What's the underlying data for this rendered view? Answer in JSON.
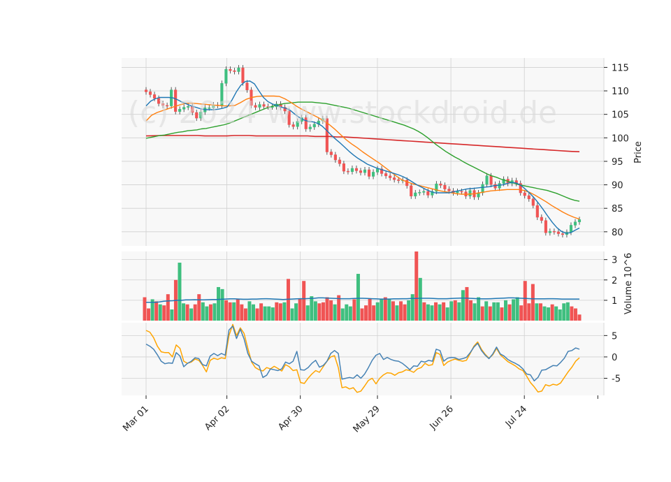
{
  "chart_data": {
    "type": "candlestick",
    "watermark": "(c) 2024 www.stockdroid.de",
    "x_tick_labels": [
      "Mar 01",
      "Apr 02",
      "Apr 30",
      "May 29",
      "Jun 26",
      "Jul 24"
    ],
    "x_tick_days": [
      0,
      22,
      42,
      63,
      83,
      103
    ],
    "n_days": 119,
    "grid": true,
    "price": {
      "ylabel": "Price",
      "ylim": [
        77,
        117
      ],
      "yticks": [
        80,
        85,
        90,
        95,
        100,
        105,
        110,
        115
      ],
      "close": [
        109.8,
        109.2,
        108.4,
        107.3,
        106.9,
        106.8,
        110.2,
        105.6,
        106.1,
        106.5,
        106.7,
        105.4,
        104.2,
        105.5,
        106.4,
        106.4,
        107.0,
        106.9,
        111.6,
        114.6,
        114.3,
        114.1,
        114.9,
        111.7,
        110.2,
        106.9,
        106.5,
        107.1,
        106.7,
        106.6,
        106.6,
        107.2,
        106.5,
        105.7,
        102.8,
        102.4,
        103.5,
        104.3,
        101.9,
        102.3,
        102.9,
        103.6,
        104.1,
        97.0,
        96.4,
        95.3,
        94.5,
        92.9,
        92.8,
        93.5,
        93.0,
        92.6,
        93.2,
        91.8,
        92.7,
        93.4,
        92.4,
        91.9,
        91.5,
        91.1,
        90.9,
        91.0,
        89.8,
        87.6,
        88.3,
        88.4,
        88.6,
        87.8,
        88.6,
        90.2,
        89.9,
        89.1,
        88.7,
        88.3,
        88.6,
        88.5,
        87.6,
        88.8,
        87.4,
        88.3,
        90.1,
        91.9,
        90.1,
        89.3,
        90.3,
        91.2,
        90.3,
        90.9,
        90.3,
        88.3,
        87.7,
        87.0,
        85.6,
        83.1,
        82.4,
        79.8,
        80.1,
        80.0,
        79.6,
        79.4,
        79.9,
        81.4,
        82.1,
        82.6
      ],
      "ma_short": [
        106.8,
        107.8,
        108.3,
        108.6,
        108.6,
        108.6,
        108.5,
        108.1,
        107.6,
        107.2,
        106.8,
        106.5,
        106.2,
        106.0,
        106.0,
        106.0,
        106.1,
        106.3,
        106.6,
        108.0,
        109.8,
        111.2,
        112.0,
        112.1,
        111.5,
        110.0,
        108.6,
        107.7,
        107.2,
        106.9,
        106.5,
        106.3,
        105.8,
        105.0,
        104.3,
        103.8,
        103.5,
        103.4,
        103.1,
        102.5,
        101.6,
        100.6,
        99.7,
        98.9,
        98.0,
        97.1,
        96.3,
        95.6,
        95.0,
        94.4,
        94.0,
        93.6,
        93.3,
        93.0,
        92.7,
        92.4,
        92.1,
        91.7,
        91.2,
        90.6,
        90.0,
        89.5,
        89.0,
        88.6,
        88.3,
        88.3,
        88.3,
        88.3,
        88.5,
        88.7,
        88.9,
        89.1,
        89.2,
        89.3,
        89.4,
        89.5,
        89.6,
        89.8,
        89.9,
        90.0,
        90.3,
        90.5,
        90.4,
        89.9,
        89.1,
        88.2,
        87.2,
        86.0,
        84.7,
        83.3,
        82.0,
        80.9,
        80.1,
        79.7,
        79.8,
        80.3,
        80.8
      ],
      "ma_mid": [
        103.6,
        104.8,
        105.4,
        105.8,
        106.2,
        106.6,
        107.0,
        107.3,
        107.4,
        107.3,
        107.2,
        107.1,
        107.0,
        106.9,
        106.8,
        106.8,
        106.9,
        107.5,
        108.2,
        108.6,
        108.8,
        108.9,
        108.9,
        108.9,
        108.8,
        108.3,
        107.6,
        106.8,
        106.1,
        105.5,
        104.9,
        104.3,
        103.6,
        102.8,
        101.8,
        100.7,
        99.6,
        98.7,
        97.9,
        97.0,
        96.2,
        95.4,
        94.6,
        93.7,
        92.8,
        91.9,
        91.1,
        90.6,
        90.2,
        89.9,
        89.6,
        89.3,
        89.0,
        88.7,
        88.5,
        88.3,
        88.1,
        88.0,
        88.0,
        88.1,
        88.3,
        88.5,
        88.7,
        88.8,
        88.9,
        89.0,
        89.0,
        89.0,
        88.8,
        88.4,
        87.8,
        87.1,
        86.4,
        85.6,
        84.9,
        84.2,
        83.6,
        83.1,
        82.7
      ],
      "ma_long": [
        99.9,
        100.1,
        100.3,
        100.5,
        100.6,
        100.8,
        101.0,
        101.2,
        101.3,
        101.5,
        101.6,
        101.7,
        101.9,
        102.0,
        102.2,
        102.4,
        102.6,
        102.8,
        103.1,
        103.5,
        103.9,
        104.3,
        104.7,
        105.1,
        105.5,
        105.9,
        106.3,
        106.6,
        106.9,
        107.1,
        107.3,
        107.4,
        107.5,
        107.6,
        107.6,
        107.6,
        107.6,
        107.5,
        107.4,
        107.3,
        107.1,
        106.9,
        106.7,
        106.5,
        106.3,
        106.0,
        105.7,
        105.4,
        105.1,
        104.8,
        104.5,
        104.2,
        103.9,
        103.6,
        103.3,
        103.0,
        102.7,
        102.3,
        101.9,
        101.4,
        100.8,
        100.1,
        99.3,
        98.5,
        97.8,
        97.1,
        96.5,
        95.9,
        95.4,
        94.8,
        94.3,
        93.8,
        93.3,
        92.8,
        92.3,
        91.9,
        91.6,
        91.2,
        90.9,
        90.6,
        90.3,
        90.0,
        89.8,
        89.6,
        89.4,
        89.2,
        89.0,
        88.8,
        88.5,
        88.2,
        87.8,
        87.4,
        87.0,
        86.7,
        86.5
      ],
      "ma_200": [
        100.4,
        100.45,
        100.5,
        100.5,
        100.5,
        100.5,
        100.5,
        100.5,
        100.4,
        100.4,
        100.4,
        100.4,
        100.5,
        100.5,
        100.5,
        100.4,
        100.4,
        100.4,
        100.4,
        100.4,
        100.4,
        100.4,
        100.4,
        100.3,
        100.3,
        100.3,
        100.2,
        100.2,
        100.1,
        100.0,
        99.9,
        99.8,
        99.7,
        99.6,
        99.5,
        99.4,
        99.3,
        99.2,
        99.1,
        99.0,
        98.9,
        98.8,
        98.7,
        98.6,
        98.5,
        98.4,
        98.3,
        98.2,
        98.1,
        98.0,
        97.9,
        97.8,
        97.7,
        97.6,
        97.5,
        97.4,
        97.3,
        97.2,
        97.1,
        97.05
      ]
    },
    "volume": {
      "ylabel": "Volume  10^6",
      "ylim": [
        0,
        3.4
      ],
      "yticks": [
        1,
        2,
        3
      ],
      "values": [
        1.15,
        0.6,
        1.05,
        0.95,
        0.8,
        0.75,
        1.3,
        0.55,
        2.0,
        2.85,
        0.85,
        0.8,
        0.6,
        0.8,
        1.3,
        0.9,
        0.7,
        0.8,
        0.85,
        1.65,
        1.55,
        1.0,
        0.9,
        0.9,
        1.05,
        0.8,
        0.6,
        0.95,
        0.8,
        0.6,
        0.85,
        0.7,
        0.7,
        0.65,
        0.9,
        0.85,
        0.9,
        2.05,
        0.6,
        0.85,
        1.1,
        1.95,
        0.75,
        1.2,
        0.95,
        0.85,
        0.9,
        1.15,
        1.0,
        0.8,
        1.25,
        0.6,
        0.8,
        0.7,
        1.05,
        2.3,
        0.6,
        0.75,
        1.1,
        0.75,
        0.9,
        1.05,
        1.15,
        1.05,
        0.95,
        0.75,
        0.95,
        0.8,
        1.0,
        1.3,
        3.4,
        2.1,
        0.9,
        0.8,
        0.75,
        0.9,
        0.8,
        0.9,
        0.65,
        0.95,
        1.0,
        0.9,
        1.5,
        1.65,
        1.0,
        0.85,
        1.15,
        0.7,
        0.95,
        0.7,
        0.9,
        0.9,
        0.65,
        1.0,
        0.8,
        1.05,
        1.15,
        0.75,
        1.95,
        0.85,
        1.8,
        0.85,
        0.85,
        0.7,
        0.65,
        0.8,
        0.7,
        0.55,
        0.85,
        0.9,
        0.7,
        0.6,
        0.3
      ],
      "up": [
        0,
        0,
        1,
        0,
        1,
        0,
        0,
        1,
        0,
        1,
        1,
        0,
        1,
        0,
        0,
        1,
        1,
        0,
        1,
        1,
        1,
        0,
        0,
        1,
        0,
        0,
        0,
        1,
        1,
        0,
        0,
        1,
        1,
        1,
        0,
        0,
        1,
        0,
        1,
        1,
        0,
        0,
        1,
        1,
        1,
        0,
        0,
        0,
        0,
        1,
        0,
        1,
        1,
        1,
        0,
        1,
        0,
        0,
        0,
        0,
        1,
        1,
        0,
        1,
        0,
        1,
        0,
        0,
        1,
        1,
        0,
        1,
        0,
        1,
        1,
        0,
        1,
        0,
        1,
        1,
        0,
        1,
        1,
        0,
        0,
        1,
        1,
        0,
        1,
        0,
        1,
        1,
        0,
        1,
        0,
        1,
        1,
        0,
        0,
        0,
        0,
        1,
        0,
        1,
        1,
        0,
        1,
        1,
        1,
        1,
        0,
        0,
        0,
        1,
        1
      ],
      "ma": [
        0.9,
        0.9,
        0.9,
        0.92,
        0.95,
        0.97,
        0.98,
        1.0,
        1.0,
        1.02,
        1.02,
        1.03,
        1.02,
        1.02,
        1.03,
        1.04,
        1.04,
        1.05,
        1.06,
        1.07,
        1.07,
        1.06,
        1.05,
        1.05,
        1.06,
        1.06,
        1.07,
        1.08,
        1.07,
        1.06,
        1.05,
        1.04,
        1.05,
        1.06,
        1.07,
        1.08,
        1.08,
        1.09,
        1.1,
        1.12,
        1.12,
        1.11,
        1.1,
        1.09,
        1.08,
        1.08,
        1.08,
        1.09,
        1.1,
        1.1,
        1.09,
        1.08,
        1.07,
        1.06,
        1.06,
        1.06,
        1.07,
        1.07,
        1.08,
        1.08,
        1.09,
        1.09,
        1.1,
        1.1,
        1.1,
        1.09,
        1.08,
        1.08,
        1.08,
        1.09,
        1.1,
        1.11,
        1.11,
        1.1,
        1.09,
        1.08,
        1.07,
        1.07,
        1.08,
        1.09,
        1.1,
        1.11,
        1.12,
        1.12,
        1.11,
        1.1,
        1.09,
        1.08,
        1.07,
        1.07,
        1.07,
        1.08,
        1.08,
        1.07,
        1.06,
        1.06,
        1.06,
        1.06,
        1.06
      ]
    },
    "oscillator": {
      "ylim": [
        -9,
        8
      ],
      "yticks": [
        5,
        0,
        -5
      ],
      "line_a": [
        3.0,
        2.5,
        1.8,
        0.5,
        -1.0,
        -1.6,
        -1.4,
        -1.5,
        1.0,
        0.2,
        -2.3,
        -1.5,
        -1.0,
        -0.2,
        -0.4,
        -1.8,
        -2.1,
        0.2,
        0.8,
        0.3,
        0.8,
        0.4,
        6.3,
        7.2,
        4.3,
        6.5,
        4.2,
        0.8,
        -1.0,
        -1.6,
        -2.1,
        -4.8,
        -4.3,
        -2.8,
        -3.0,
        -3.2,
        -2.8,
        -1.2,
        -1.6,
        -1.0,
        1.3,
        -3.0,
        -3.1,
        -2.5,
        -1.5,
        -0.8,
        -2.4,
        -2.0,
        -1.0,
        0.8,
        1.5,
        0.8,
        -5.2,
        -5.0,
        -4.8,
        -5.0,
        -4.2,
        -5.0,
        -4.0,
        -2.5,
        -0.8,
        0.4,
        0.8,
        -0.6,
        -0.1,
        -0.6,
        -0.9,
        -1.0,
        -1.5,
        -2.2,
        -3.0,
        -2.1,
        -2.2,
        -1.0,
        -1.2,
        -0.8,
        -1.0,
        1.8,
        1.5,
        -1.0,
        -0.3,
        -0.1,
        -0.2,
        -0.6,
        -0.4,
        -0.1,
        1.0,
        2.3,
        3.2,
        1.5,
        0.4,
        -0.4,
        0.7,
        2.3,
        0.7,
        0.2,
        -0.6,
        -1.1,
        -1.5,
        -2.0,
        -2.8,
        -4.0,
        -4.2,
        -5.6,
        -4.8,
        -3.1,
        -3.0,
        -2.5,
        -2.0,
        -2.1,
        -1.3,
        -0.3,
        1.3,
        1.5,
        2.1,
        1.8
      ],
      "line_b": [
        6.2,
        5.8,
        4.5,
        2.5,
        1.2,
        1.0,
        1.0,
        0.0,
        2.8,
        2.0,
        -1.0,
        -1.5,
        -1.2,
        -0.5,
        -0.8,
        -2.0,
        -3.5,
        -0.8,
        -0.3,
        -0.6,
        -0.2,
        -0.4,
        5.0,
        7.6,
        5.0,
        6.8,
        5.5,
        2.0,
        -1.2,
        -2.5,
        -3.0,
        -3.3,
        -2.5,
        -2.8,
        -2.2,
        -2.7,
        -3.3,
        -1.8,
        -2.3,
        -3.2,
        -3.0,
        -6.0,
        -6.2,
        -5.0,
        -4.0,
        -3.2,
        -3.6,
        -2.3,
        -1.0,
        0.0,
        0.3,
        -2.5,
        -7.2,
        -7.0,
        -7.5,
        -7.2,
        -8.3,
        -8.0,
        -6.8,
        -5.5,
        -5.0,
        -6.3,
        -5.0,
        -4.2,
        -3.7,
        -3.8,
        -4.3,
        -3.7,
        -3.5,
        -3.0,
        -3.2,
        -3.6,
        -2.8,
        -2.5,
        -1.5,
        -2.0,
        -1.8,
        1.0,
        0.6,
        -2.0,
        -1.2,
        -0.8,
        -0.5,
        -0.8,
        -1.0,
        -0.8,
        0.8,
        2.5,
        3.5,
        1.8,
        0.6,
        -0.3,
        0.5,
        2.0,
        0.5,
        -0.3,
        -1.1,
        -1.6,
        -2.1,
        -2.8,
        -3.2,
        -4.5,
        -6.0,
        -7.0,
        -8.2,
        -8.0,
        -6.5,
        -6.8,
        -6.4,
        -6.6,
        -6.1,
        -4.8,
        -3.5,
        -2.4,
        -1.0,
        -0.2
      ]
    },
    "colors": {
      "up": "#3fbf7f",
      "down": "#f05454",
      "ma_short": "#1f77b4",
      "ma_mid": "#ff7f0e",
      "ma_long": "#2ca02c",
      "ma_200": "#d62728",
      "volume_ma": "#1f77b4",
      "osc_a": "#4682b4",
      "osc_b": "#ffa500",
      "grid": "#d0d0d0",
      "panel_bg": "#f8f8f8"
    }
  }
}
